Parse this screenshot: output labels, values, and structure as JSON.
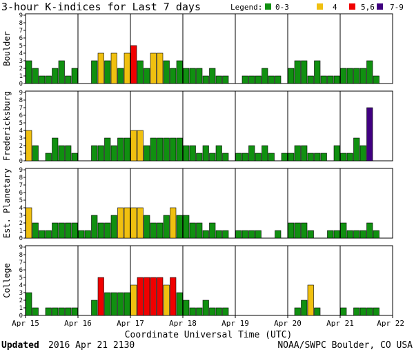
{
  "chart_data": {
    "type": "bar",
    "title": "3-hour K-indices for Last 7 days",
    "legend": {
      "label": "Legend:",
      "entries": [
        {
          "label": "0-3",
          "color": "#109010"
        },
        {
          "label": "4",
          "color": "#f0c010"
        },
        {
          "label": "5,6",
          "color": "#f00000"
        },
        {
          "label": "7-9",
          "color": "#400080"
        }
      ]
    },
    "ylim": [
      0,
      9
    ],
    "y_ticks": [
      "0",
      "1",
      "2",
      "3",
      "4",
      "5",
      "6",
      "7",
      "8",
      "9"
    ],
    "x_ticks": [
      "Apr 15",
      "Apr 16",
      "Apr 17",
      "Apr 18",
      "Apr 19",
      "Apr 20",
      "Apr 21",
      "Apr 22"
    ],
    "xlabel": "Coordinate Universal Time (UTC)",
    "bins_per_day": 8,
    "days": 7,
    "panels": [
      {
        "ylabel": "Boulder",
        "values": [
          3,
          2,
          1,
          1,
          2,
          3,
          1,
          2,
          0,
          0,
          3,
          4,
          3,
          4,
          2,
          4,
          5,
          3,
          2,
          4,
          4,
          3,
          2,
          3,
          2,
          2,
          2,
          1,
          2,
          1,
          1,
          0,
          0,
          1,
          1,
          1,
          2,
          1,
          1,
          0,
          2,
          3,
          3,
          1,
          3,
          1,
          1,
          1,
          2,
          2,
          2,
          2,
          3,
          1,
          0
        ]
      },
      {
        "ylabel": "Fredericksburg",
        "values": [
          4,
          2,
          0,
          1,
          3,
          2,
          2,
          1,
          0,
          0,
          2,
          2,
          3,
          2,
          3,
          3,
          4,
          4,
          2,
          3,
          3,
          3,
          3,
          3,
          2,
          2,
          1,
          2,
          1,
          2,
          1,
          0,
          1,
          1,
          2,
          1,
          2,
          1,
          0,
          1,
          1,
          2,
          2,
          1,
          1,
          1,
          0,
          2,
          1,
          1,
          3,
          2,
          7,
          0
        ]
      },
      {
        "ylabel": "Est. Planetary",
        "values": [
          4,
          2,
          1,
          1,
          2,
          2,
          2,
          2,
          1,
          1,
          3,
          2,
          2,
          3,
          4,
          4,
          4,
          4,
          3,
          2,
          2,
          3,
          4,
          3,
          3,
          2,
          2,
          1,
          2,
          1,
          1,
          0,
          1,
          1,
          1,
          1,
          0,
          0,
          1,
          0,
          2,
          2,
          2,
          1,
          0,
          0,
          1,
          1,
          2,
          1,
          1,
          1,
          2,
          1
        ]
      },
      {
        "ylabel": "College",
        "values": [
          3,
          1,
          0,
          1,
          1,
          1,
          1,
          1,
          0,
          0,
          2,
          5,
          3,
          3,
          3,
          3,
          4,
          5,
          5,
          5,
          5,
          4,
          5,
          3,
          2,
          1,
          1,
          2,
          1,
          1,
          1,
          0,
          0,
          0,
          0,
          0,
          0,
          0,
          0,
          0,
          0,
          1,
          2,
          4,
          1,
          0,
          0,
          0,
          1,
          0,
          1,
          1,
          1,
          1
        ]
      }
    ]
  },
  "footer": {
    "updated_label": "Updated",
    "updated_value": "2016 Apr 21 2130",
    "source": "NOAA/SWPC Boulder, CO USA"
  }
}
